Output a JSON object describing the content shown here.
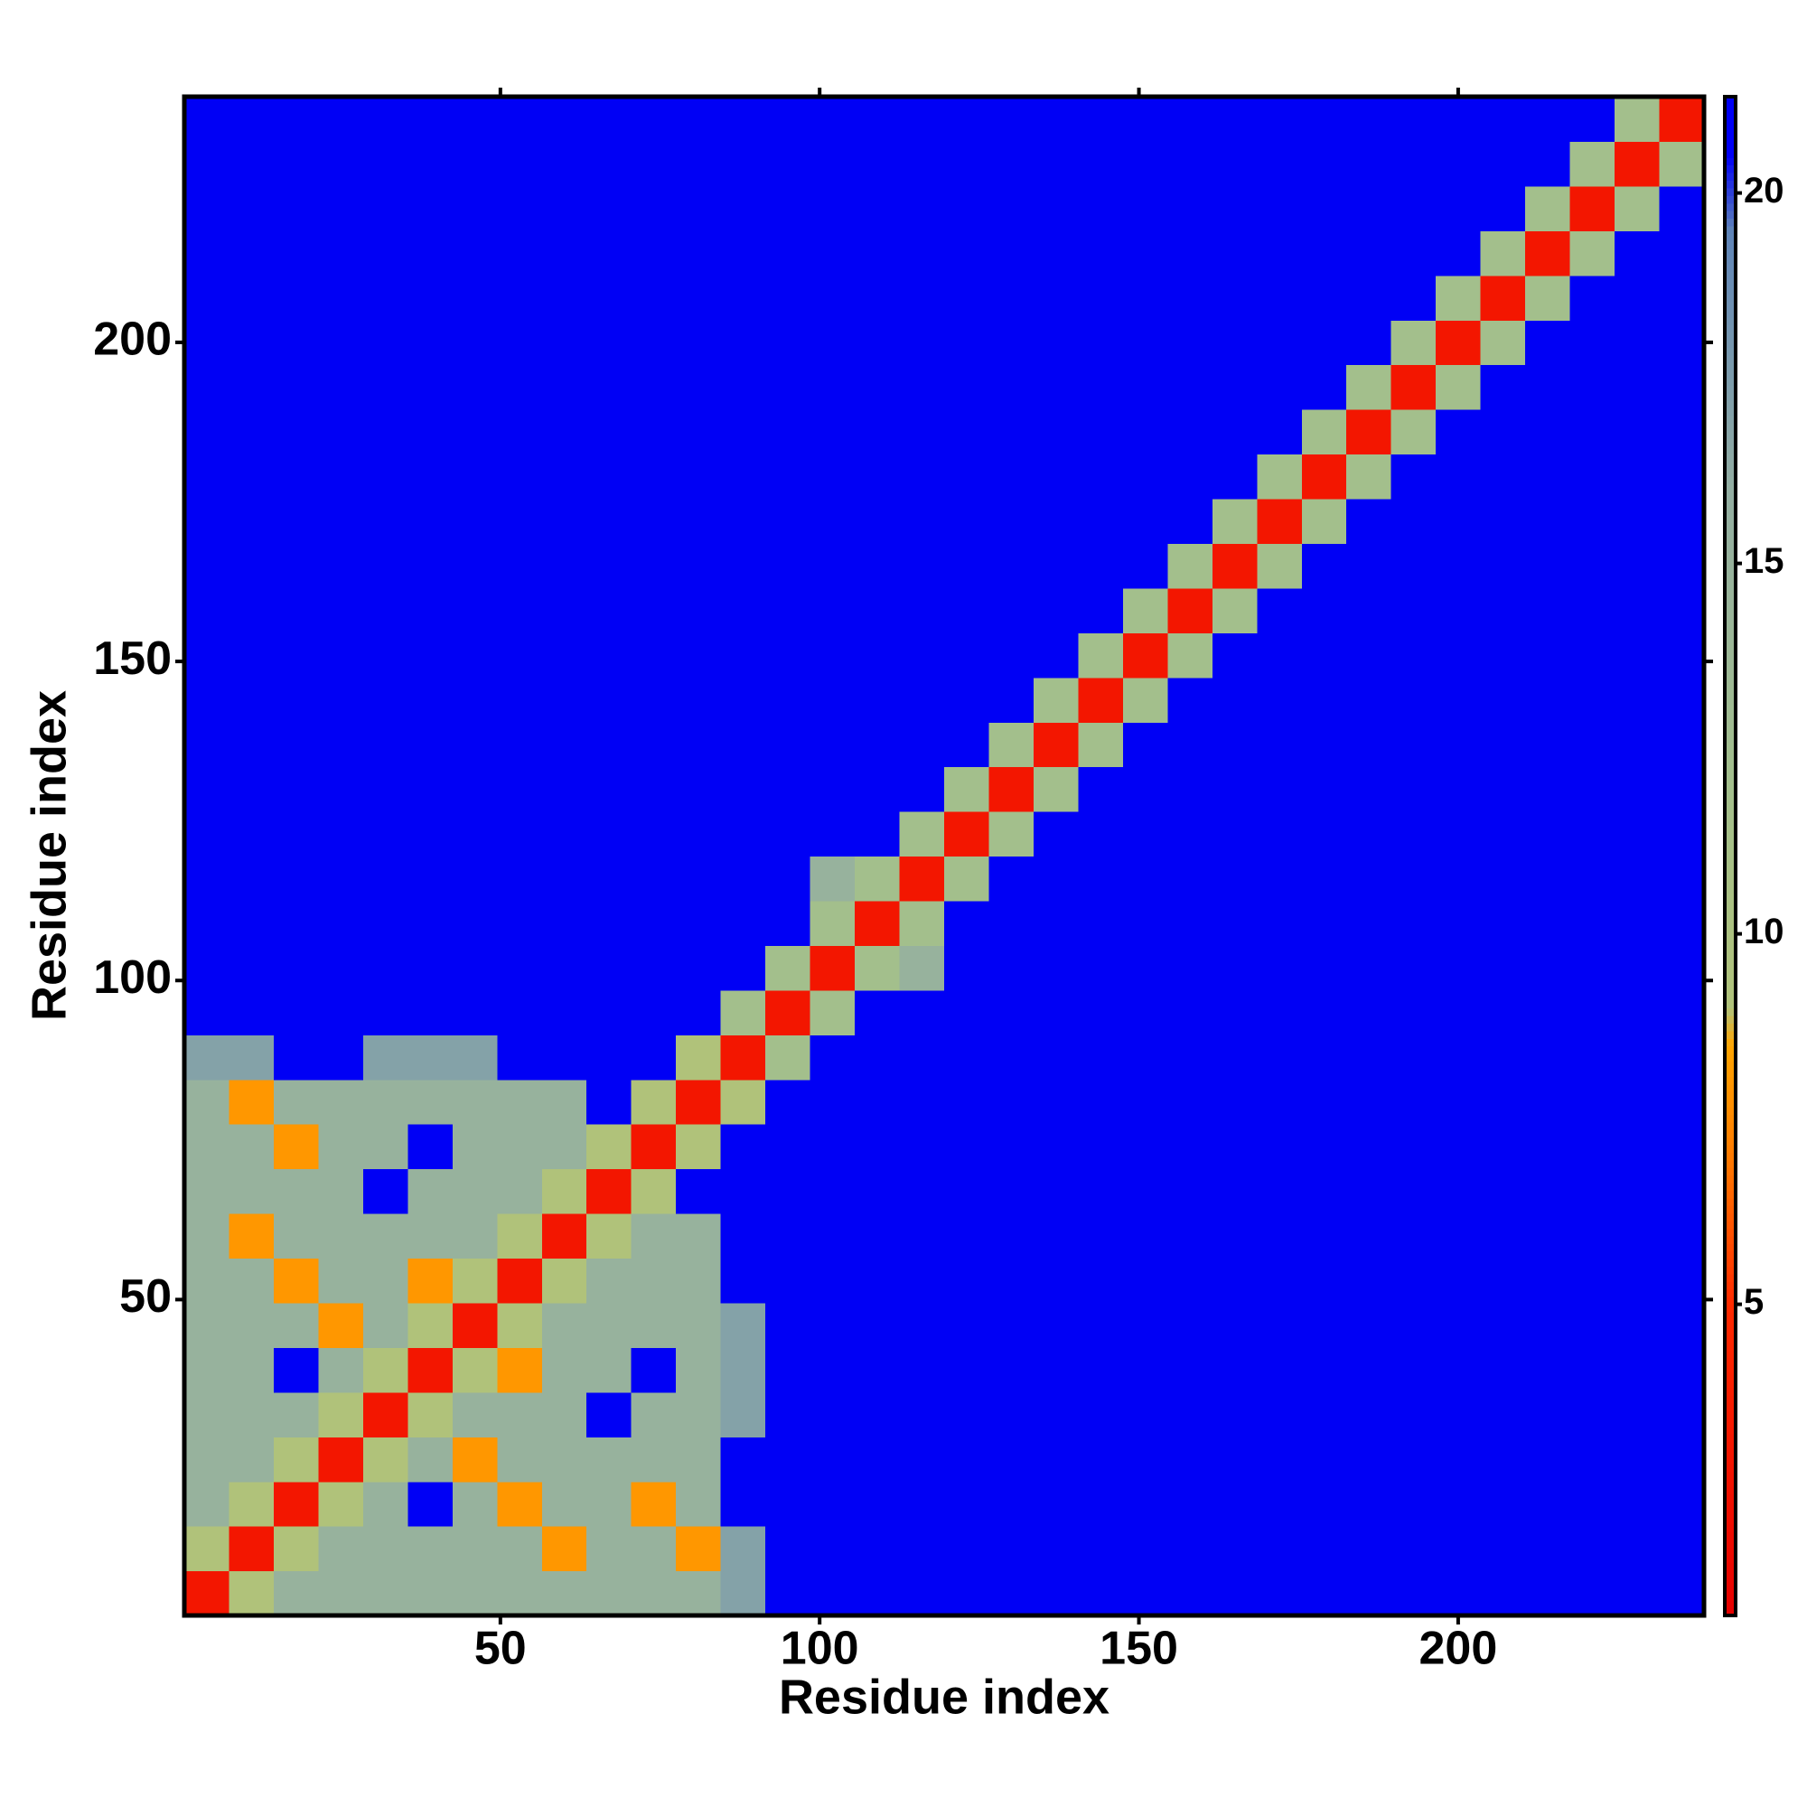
{
  "chart_data": {
    "type": "heatmap",
    "x_label": "Residue index",
    "y_label": "Residue index",
    "bins": [
      0.5,
      7.5,
      14.5,
      21.5,
      28.5,
      35.5,
      42.5,
      49.5,
      56.5,
      63.5,
      70.5,
      77.5,
      84.5,
      91.5,
      98.5,
      105.5,
      112.5,
      119.5,
      126.5,
      133.5,
      140.5,
      147.5,
      154.5,
      161.5,
      168.5,
      175.5,
      182.5,
      189.5,
      196.5,
      203.5,
      210.5,
      217.5,
      224.5,
      231.5,
      238.5
    ],
    "values": [
      [
        3,
        9,
        15,
        15,
        15,
        15,
        15,
        15,
        15,
        15,
        15,
        15,
        17,
        21,
        21,
        21,
        21,
        21,
        21,
        21,
        21,
        21,
        21,
        21,
        21,
        21,
        21,
        21,
        21,
        21,
        21,
        21,
        21,
        21
      ],
      [
        9,
        3,
        9,
        15,
        15,
        15,
        15,
        15,
        8,
        15,
        15,
        8,
        17,
        21,
        21,
        21,
        21,
        21,
        21,
        21,
        21,
        21,
        21,
        21,
        21,
        21,
        21,
        21,
        21,
        21,
        21,
        21,
        21,
        21
      ],
      [
        15,
        9,
        3,
        9,
        15,
        21,
        15,
        8,
        15,
        15,
        8,
        15,
        21,
        21,
        21,
        21,
        21,
        21,
        21,
        21,
        21,
        21,
        21,
        21,
        21,
        21,
        21,
        21,
        21,
        21,
        21,
        21,
        21,
        21
      ],
      [
        15,
        15,
        9,
        3,
        9,
        15,
        8,
        15,
        15,
        15,
        15,
        15,
        21,
        21,
        21,
        21,
        21,
        21,
        21,
        21,
        21,
        21,
        21,
        21,
        21,
        21,
        21,
        21,
        21,
        21,
        21,
        21,
        21,
        21
      ],
      [
        15,
        15,
        15,
        9,
        3,
        9,
        15,
        15,
        15,
        21,
        15,
        15,
        17,
        21,
        21,
        21,
        21,
        21,
        21,
        21,
        21,
        21,
        21,
        21,
        21,
        21,
        21,
        21,
        21,
        21,
        21,
        21,
        21,
        21
      ],
      [
        15,
        15,
        21,
        15,
        9,
        3,
        9,
        8,
        15,
        15,
        21,
        15,
        17,
        21,
        21,
        21,
        21,
        21,
        21,
        21,
        21,
        21,
        21,
        21,
        21,
        21,
        21,
        21,
        21,
        21,
        21,
        21,
        21,
        21
      ],
      [
        15,
        15,
        15,
        8,
        15,
        9,
        3,
        9,
        15,
        15,
        15,
        15,
        17,
        21,
        21,
        21,
        21,
        21,
        21,
        21,
        21,
        21,
        21,
        21,
        21,
        21,
        21,
        21,
        21,
        21,
        21,
        21,
        21,
        21
      ],
      [
        15,
        15,
        8,
        15,
        15,
        8,
        9,
        3,
        9,
        15,
        15,
        15,
        21,
        21,
        21,
        21,
        21,
        21,
        21,
        21,
        21,
        21,
        21,
        21,
        21,
        21,
        21,
        21,
        21,
        21,
        21,
        21,
        21,
        21
      ],
      [
        15,
        8,
        15,
        15,
        15,
        15,
        15,
        9,
        3,
        9,
        15,
        15,
        21,
        21,
        21,
        21,
        21,
        21,
        21,
        21,
        21,
        21,
        21,
        21,
        21,
        21,
        21,
        21,
        21,
        21,
        21,
        21,
        21,
        21
      ],
      [
        15,
        15,
        15,
        15,
        21,
        15,
        15,
        15,
        9,
        3,
        9,
        21,
        21,
        21,
        21,
        21,
        21,
        21,
        21,
        21,
        21,
        21,
        21,
        21,
        21,
        21,
        21,
        21,
        21,
        21,
        21,
        21,
        21,
        21
      ],
      [
        15,
        15,
        8,
        15,
        15,
        21,
        15,
        15,
        15,
        9,
        3,
        9,
        21,
        21,
        21,
        21,
        21,
        21,
        21,
        21,
        21,
        21,
        21,
        21,
        21,
        21,
        21,
        21,
        21,
        21,
        21,
        21,
        21,
        21
      ],
      [
        15,
        8,
        15,
        15,
        15,
        15,
        15,
        15,
        15,
        21,
        9,
        3,
        9,
        21,
        21,
        21,
        21,
        21,
        21,
        21,
        21,
        21,
        21,
        21,
        21,
        21,
        21,
        21,
        21,
        21,
        21,
        21,
        21,
        21
      ],
      [
        17,
        17,
        21,
        21,
        17,
        17,
        17,
        21,
        21,
        21,
        21,
        9,
        3,
        12,
        21,
        21,
        21,
        21,
        21,
        21,
        21,
        21,
        21,
        21,
        21,
        21,
        21,
        21,
        21,
        21,
        21,
        21,
        21,
        21
      ],
      [
        21,
        21,
        21,
        21,
        21,
        21,
        21,
        21,
        21,
        21,
        21,
        21,
        12,
        3,
        12,
        21,
        21,
        21,
        21,
        21,
        21,
        21,
        21,
        21,
        21,
        21,
        21,
        21,
        21,
        21,
        21,
        21,
        21,
        21
      ],
      [
        21,
        21,
        21,
        21,
        21,
        21,
        21,
        21,
        21,
        21,
        21,
        21,
        21,
        12,
        3,
        12,
        15,
        21,
        21,
        21,
        21,
        21,
        21,
        21,
        21,
        21,
        21,
        21,
        21,
        21,
        21,
        21,
        21,
        21
      ],
      [
        21,
        21,
        21,
        21,
        21,
        21,
        21,
        21,
        21,
        21,
        21,
        21,
        21,
        21,
        12,
        3,
        12,
        21,
        21,
        21,
        21,
        21,
        21,
        21,
        21,
        21,
        21,
        21,
        21,
        21,
        21,
        21,
        21,
        21
      ],
      [
        21,
        21,
        21,
        21,
        21,
        21,
        21,
        21,
        21,
        21,
        21,
        21,
        21,
        21,
        15,
        12,
        3,
        12,
        21,
        21,
        21,
        21,
        21,
        21,
        21,
        21,
        21,
        21,
        21,
        21,
        21,
        21,
        21,
        21
      ],
      [
        21,
        21,
        21,
        21,
        21,
        21,
        21,
        21,
        21,
        21,
        21,
        21,
        21,
        21,
        21,
        21,
        12,
        3,
        12,
        21,
        21,
        21,
        21,
        21,
        21,
        21,
        21,
        21,
        21,
        21,
        21,
        21,
        21,
        21
      ],
      [
        21,
        21,
        21,
        21,
        21,
        21,
        21,
        21,
        21,
        21,
        21,
        21,
        21,
        21,
        21,
        21,
        21,
        12,
        3,
        12,
        21,
        21,
        21,
        21,
        21,
        21,
        21,
        21,
        21,
        21,
        21,
        21,
        21,
        21
      ],
      [
        21,
        21,
        21,
        21,
        21,
        21,
        21,
        21,
        21,
        21,
        21,
        21,
        21,
        21,
        21,
        21,
        21,
        21,
        12,
        3,
        12,
        21,
        21,
        21,
        21,
        21,
        21,
        21,
        21,
        21,
        21,
        21,
        21,
        21
      ],
      [
        21,
        21,
        21,
        21,
        21,
        21,
        21,
        21,
        21,
        21,
        21,
        21,
        21,
        21,
        21,
        21,
        21,
        21,
        21,
        12,
        3,
        12,
        21,
        21,
        21,
        21,
        21,
        21,
        21,
        21,
        21,
        21,
        21,
        21
      ],
      [
        21,
        21,
        21,
        21,
        21,
        21,
        21,
        21,
        21,
        21,
        21,
        21,
        21,
        21,
        21,
        21,
        21,
        21,
        21,
        21,
        12,
        3,
        12,
        21,
        21,
        21,
        21,
        21,
        21,
        21,
        21,
        21,
        21,
        21
      ],
      [
        21,
        21,
        21,
        21,
        21,
        21,
        21,
        21,
        21,
        21,
        21,
        21,
        21,
        21,
        21,
        21,
        21,
        21,
        21,
        21,
        21,
        12,
        3,
        12,
        21,
        21,
        21,
        21,
        21,
        21,
        21,
        21,
        21,
        21
      ],
      [
        21,
        21,
        21,
        21,
        21,
        21,
        21,
        21,
        21,
        21,
        21,
        21,
        21,
        21,
        21,
        21,
        21,
        21,
        21,
        21,
        21,
        21,
        12,
        3,
        12,
        21,
        21,
        21,
        21,
        21,
        21,
        21,
        21,
        21
      ],
      [
        21,
        21,
        21,
        21,
        21,
        21,
        21,
        21,
        21,
        21,
        21,
        21,
        21,
        21,
        21,
        21,
        21,
        21,
        21,
        21,
        21,
        21,
        21,
        12,
        3,
        12,
        21,
        21,
        21,
        21,
        21,
        21,
        21,
        21
      ],
      [
        21,
        21,
        21,
        21,
        21,
        21,
        21,
        21,
        21,
        21,
        21,
        21,
        21,
        21,
        21,
        21,
        21,
        21,
        21,
        21,
        21,
        21,
        21,
        21,
        12,
        3,
        12,
        21,
        21,
        21,
        21,
        21,
        21,
        21
      ],
      [
        21,
        21,
        21,
        21,
        21,
        21,
        21,
        21,
        21,
        21,
        21,
        21,
        21,
        21,
        21,
        21,
        21,
        21,
        21,
        21,
        21,
        21,
        21,
        21,
        21,
        12,
        3,
        12,
        21,
        21,
        21,
        21,
        21,
        21
      ],
      [
        21,
        21,
        21,
        21,
        21,
        21,
        21,
        21,
        21,
        21,
        21,
        21,
        21,
        21,
        21,
        21,
        21,
        21,
        21,
        21,
        21,
        21,
        21,
        21,
        21,
        21,
        12,
        3,
        12,
        21,
        21,
        21,
        21,
        21
      ],
      [
        21,
        21,
        21,
        21,
        21,
        21,
        21,
        21,
        21,
        21,
        21,
        21,
        21,
        21,
        21,
        21,
        21,
        21,
        21,
        21,
        21,
        21,
        21,
        21,
        21,
        21,
        21,
        12,
        3,
        12,
        21,
        21,
        21,
        21
      ],
      [
        21,
        21,
        21,
        21,
        21,
        21,
        21,
        21,
        21,
        21,
        21,
        21,
        21,
        21,
        21,
        21,
        21,
        21,
        21,
        21,
        21,
        21,
        21,
        21,
        21,
        21,
        21,
        21,
        12,
        3,
        12,
        21,
        21,
        21
      ],
      [
        21,
        21,
        21,
        21,
        21,
        21,
        21,
        21,
        21,
        21,
        21,
        21,
        21,
        21,
        21,
        21,
        21,
        21,
        21,
        21,
        21,
        21,
        21,
        21,
        21,
        21,
        21,
        21,
        21,
        12,
        3,
        12,
        21,
        21
      ],
      [
        21,
        21,
        21,
        21,
        21,
        21,
        21,
        21,
        21,
        21,
        21,
        21,
        21,
        21,
        21,
        21,
        21,
        21,
        21,
        21,
        21,
        21,
        21,
        21,
        21,
        21,
        21,
        21,
        21,
        21,
        12,
        3,
        12,
        21
      ],
      [
        21,
        21,
        21,
        21,
        21,
        21,
        21,
        21,
        21,
        21,
        21,
        21,
        21,
        21,
        21,
        21,
        21,
        21,
        21,
        21,
        21,
        21,
        21,
        21,
        21,
        21,
        21,
        21,
        21,
        21,
        21,
        12,
        3,
        12
      ],
      [
        21,
        21,
        21,
        21,
        21,
        21,
        21,
        21,
        21,
        21,
        21,
        21,
        21,
        21,
        21,
        21,
        21,
        21,
        21,
        21,
        21,
        21,
        21,
        21,
        21,
        21,
        21,
        21,
        21,
        21,
        21,
        21,
        12,
        3
      ]
    ],
    "xlim": [
      0.5,
      238.5
    ],
    "ylim": [
      0.5,
      238.5
    ],
    "xticks": [
      50,
      100,
      150,
      200
    ],
    "yticks": [
      50,
      100,
      150,
      200
    ],
    "colorbar": {
      "zlim": [
        0.8,
        21.3
      ],
      "ticks": [
        5,
        10,
        15,
        20
      ]
    },
    "colorscale": [
      [
        0.8,
        "#e60000"
      ],
      [
        5,
        "#ff2a00"
      ],
      [
        7,
        "#ff7a00"
      ],
      [
        8.5,
        "#ffa500"
      ],
      [
        9,
        "#b0c27a"
      ],
      [
        12,
        "#a3bf8c"
      ],
      [
        16,
        "#93aea2"
      ],
      [
        19.5,
        "#5f84b8"
      ],
      [
        20.5,
        "#0000f5"
      ],
      [
        21.3,
        "#0000f5"
      ]
    ]
  }
}
